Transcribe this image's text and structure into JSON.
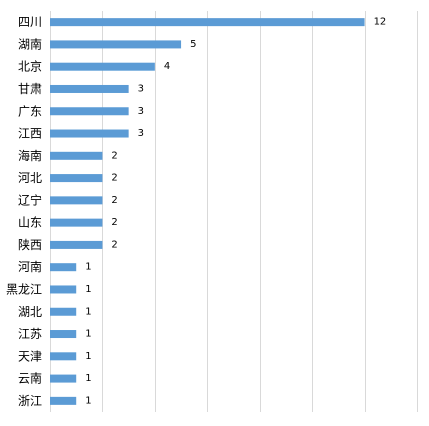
{
  "chart_data": {
    "type": "bar",
    "orientation": "horizontal",
    "categories": [
      "四川",
      "湖南",
      "北京",
      "甘肃",
      "广东",
      "江西",
      "海南",
      "河北",
      "辽宁",
      "山东",
      "陕西",
      "河南",
      "黑龙江",
      "湖北",
      "江苏",
      "天津",
      "云南",
      "浙江"
    ],
    "values": [
      12,
      5,
      4,
      3,
      3,
      3,
      2,
      2,
      2,
      2,
      2,
      1,
      1,
      1,
      1,
      1,
      1,
      1
    ],
    "title": "",
    "xlabel": "",
    "ylabel": "",
    "xlim": [
      0,
      14
    ],
    "grid": true,
    "data_labels": true,
    "bar_color": "#5B9BD5",
    "grid_color": "#D9D9D9"
  }
}
